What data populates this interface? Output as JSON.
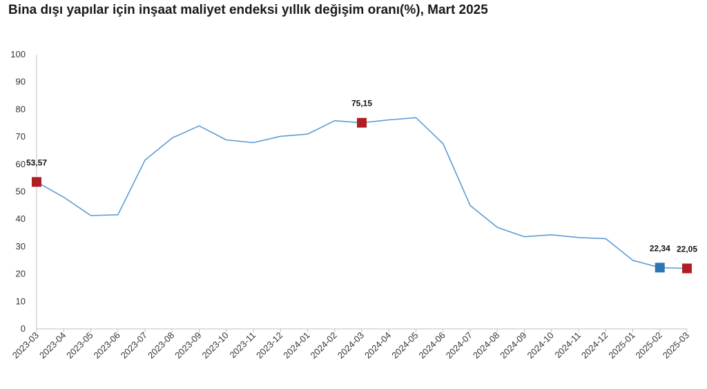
{
  "chart_data": {
    "type": "line",
    "title": "Bina dışı yapılar için inşaat maliyet endeksi yıllık değişim oranı(%), Mart 2025",
    "xlabel": "",
    "ylabel": "",
    "ylim": [
      0,
      100
    ],
    "yticks": [
      "0",
      "10",
      "20",
      "30",
      "40",
      "50",
      "60",
      "70",
      "80",
      "90",
      "100"
    ],
    "categories": [
      "2023-03",
      "2023-04",
      "2023-05",
      "2023-06",
      "2023-07",
      "2023-08",
      "2023-09",
      "2023-10",
      "2023-11",
      "2023-12",
      "2024-01",
      "2024-02",
      "2024-03",
      "2024-04",
      "2024-05",
      "2024-06",
      "2024-07",
      "2024-08",
      "2024-09",
      "2024-10",
      "2024-11",
      "2024-12",
      "2025-01",
      "2025-02",
      "2025-03"
    ],
    "series": [
      {
        "values": [
          53.57,
          48,
          41.3,
          41.6,
          61.5,
          69.6,
          74,
          68.9,
          67.9,
          70.2,
          71,
          75.9,
          75.15,
          76.2,
          77,
          67.5,
          45,
          37,
          33.6,
          34.3,
          33.3,
          32.9,
          25,
          22.34,
          22.05
        ]
      }
    ],
    "highlights": [
      {
        "index": 0,
        "label": "53,57",
        "color": "#b01e23"
      },
      {
        "index": 12,
        "label": "75,15",
        "color": "#b01e23"
      },
      {
        "index": 23,
        "label": "22,34",
        "color": "#2e75b6"
      },
      {
        "index": 24,
        "label": "22,05",
        "color": "#b01e23"
      }
    ],
    "line_color": "#5b9bd5",
    "axis_color": "#bfbfbf",
    "grid": false,
    "legend": "none"
  }
}
